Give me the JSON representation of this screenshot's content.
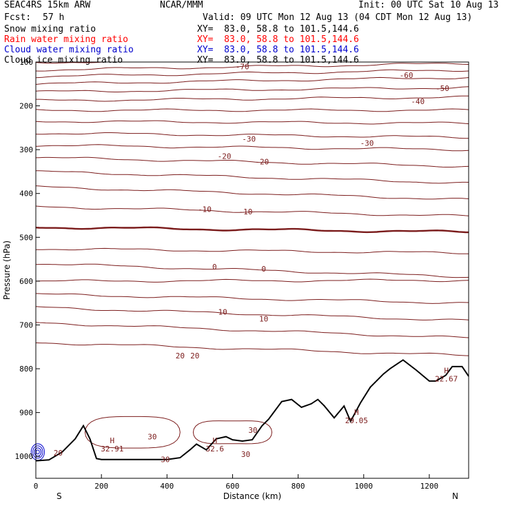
{
  "header": {
    "model": "SEAC4RS 15km ARW",
    "org": "NCAR/MMM",
    "init": "Init: 00 UTC Sat 10 Aug 13",
    "fcst_label": "Fcst:",
    "fcst_value": "57 h",
    "valid": "Valid: 09 UTC Mon 12 Aug 13 (04 CDT Mon 12 Aug 13)"
  },
  "legend": [
    {
      "label": "Snow mixing ratio",
      "xy": "XY=  83.0, 58.8 to 101.5,144.6",
      "color": "#000000"
    },
    {
      "label": "Rain water mixing ratio",
      "xy": "XY=  83.0, 58.8 to 101.5,144.6",
      "color": "#ff0000"
    },
    {
      "label": "Cloud water mixing ratio",
      "xy": "XY=  83.0, 58.8 to 101.5,144.6",
      "color": "#0000cc"
    },
    {
      "label": "Cloud ice mixing ratio",
      "xy": "XY=  83.0, 58.8 to 101.5,144.6",
      "color": "#000000"
    }
  ],
  "colors": {
    "contour": "#7a1a1a",
    "zero_contour": "#7a1a1a",
    "terrain": "#000000",
    "cloud_water": "#0000cc"
  },
  "chart_data": {
    "type": "line",
    "title": "",
    "xlabel": "Distance (km)",
    "ylabel": "Pressure (hPa)",
    "xlim": [
      0,
      1320
    ],
    "ylim": [
      1050,
      100
    ],
    "x_ticks": [
      0,
      200,
      400,
      600,
      800,
      1000,
      1200
    ],
    "y_ticks": [
      100,
      200,
      300,
      400,
      500,
      600,
      700,
      800,
      900,
      1000
    ],
    "x_end_labels": {
      "left": "S",
      "right": "N"
    },
    "terrain": {
      "x": [
        0,
        40,
        80,
        120,
        145,
        165,
        185,
        200,
        300,
        400,
        440,
        470,
        490,
        520,
        550,
        580,
        600,
        630,
        660,
        690,
        710,
        750,
        780,
        810,
        840,
        860,
        880,
        910,
        940,
        960,
        990,
        1020,
        1060,
        1080,
        1100,
        1120,
        1160,
        1200,
        1220,
        1250,
        1270,
        1300,
        1320
      ],
      "p": [
        1010,
        1008,
        990,
        960,
        930,
        960,
        1005,
        1007,
        1007,
        1007,
        1003,
        985,
        972,
        985,
        960,
        955,
        962,
        965,
        962,
        930,
        915,
        875,
        870,
        888,
        880,
        870,
        885,
        912,
        885,
        920,
        878,
        842,
        812,
        800,
        790,
        780,
        803,
        828,
        828,
        815,
        795,
        795,
        817
      ]
    },
    "isotherms": [
      {
        "value": -70,
        "p_left": 101,
        "p_right": 88
      },
      {
        "value": -65,
        "p_left": 118,
        "p_right": 103
      },
      {
        "value": -60,
        "p_left": 133,
        "p_right": 118
      },
      {
        "value": -55,
        "p_left": 150,
        "p_right": 135
      },
      {
        "value": -50,
        "p_left": 168,
        "p_right": 158
      },
      {
        "value": -45,
        "p_left": 188,
        "p_right": 180
      },
      {
        "value": -40,
        "p_left": 210,
        "p_right": 210
      },
      {
        "value": -35,
        "p_left": 235,
        "p_right": 240
      },
      {
        "value": -30,
        "p_left": 262,
        "p_right": 272
      },
      {
        "value": -25,
        "p_left": 290,
        "p_right": 300
      },
      {
        "value": -20,
        "p_left": 318,
        "p_right": 338
      },
      {
        "value": -15,
        "p_left": 350,
        "p_right": 376
      },
      {
        "value": -10,
        "p_left": 385,
        "p_right": 414
      },
      {
        "value": -5,
        "p_left": 430,
        "p_right": 452
      },
      {
        "value": 0,
        "p_left": 477,
        "p_right": 488
      },
      {
        "value": 5,
        "p_left": 526,
        "p_right": 536
      },
      {
        "value": 10,
        "p_left": 560,
        "p_right": 590
      },
      {
        "value": 15,
        "p_left": 600,
        "p_right": 598
      },
      {
        "value": 20,
        "p_left": 630,
        "p_right": 650
      },
      {
        "value": 25,
        "p_left": 660,
        "p_right": 690
      },
      {
        "value": 30,
        "p_left": 695,
        "p_right": 730
      },
      {
        "value": 35,
        "p_left": 740,
        "p_right": 770
      }
    ],
    "contour_labels": [
      {
        "text": "-70",
        "x": 630,
        "p": 110
      },
      {
        "text": "-60",
        "x": 1130,
        "p": 130
      },
      {
        "text": "-50",
        "x": 1240,
        "p": 160
      },
      {
        "text": "-40",
        "x": 1165,
        "p": 190
      },
      {
        "text": "-30",
        "x": 650,
        "p": 275
      },
      {
        "text": "-30",
        "x": 1010,
        "p": 285
      },
      {
        "text": "-20",
        "x": 575,
        "p": 315
      },
      {
        "text": "-20",
        "x": 690,
        "p": 327
      },
      {
        "text": "-10",
        "x": 515,
        "p": 436
      },
      {
        "text": "-10",
        "x": 640,
        "p": 441
      },
      {
        "text": "0",
        "x": 545,
        "p": 567
      },
      {
        "text": "0",
        "x": 695,
        "p": 572
      },
      {
        "text": "10",
        "x": 570,
        "p": 670
      },
      {
        "text": "10",
        "x": 695,
        "p": 686
      },
      {
        "text": "20",
        "x": 440,
        "p": 770
      },
      {
        "text": "20",
        "x": 485,
        "p": 770
      },
      {
        "text": "30",
        "x": 355,
        "p": 955
      },
      {
        "text": "30",
        "x": 662,
        "p": 940
      },
      {
        "text": "30",
        "x": 640,
        "p": 995
      },
      {
        "text": "30",
        "x": 395,
        "p": 1007
      },
      {
        "text": "20",
        "x": 68,
        "p": 992
      }
    ],
    "highs": [
      {
        "label": "H",
        "value": "32.91",
        "x": 233,
        "p": 970
      },
      {
        "label": "H",
        "value": "32.6",
        "x": 546,
        "p": 970
      },
      {
        "label": "H",
        "value": "29.05",
        "x": 978,
        "p": 905
      },
      {
        "label": "H",
        "value": "22.67",
        "x": 1252,
        "p": 810
      }
    ]
  }
}
